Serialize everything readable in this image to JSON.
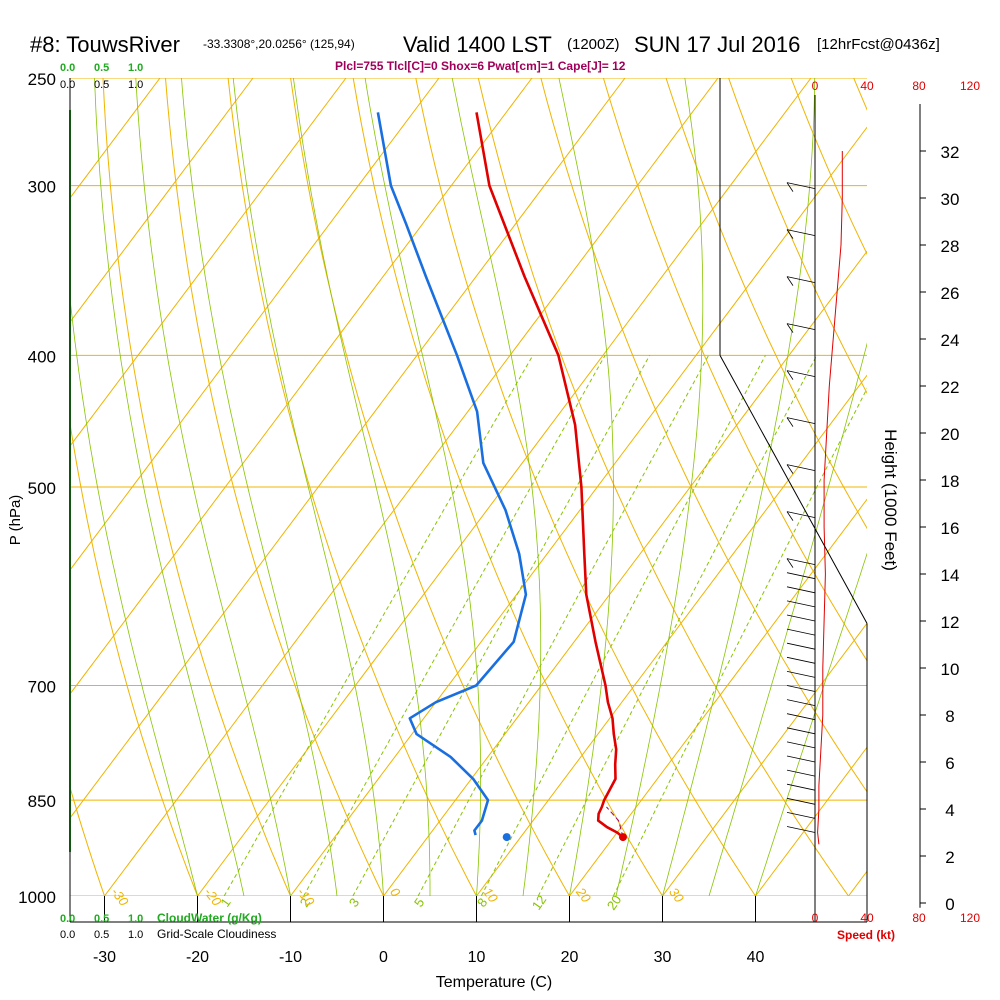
{
  "header": {
    "station": "#8: TouwsRiver",
    "coords": "-33.3308°,20.0256° (125,94)",
    "valid": "Valid 1400 LST",
    "zulu": "(1200Z)",
    "date": "SUN 17 Jul 2016",
    "fcst": "[12hrFcst@0436z]",
    "params": "Plcl=755 Tlcl[C]=0 Shox=6 Pwat[cm]=1 Cape[J]= 12"
  },
  "scales": {
    "cloud_top": [
      "0.0",
      "0.5",
      "1.0"
    ],
    "cloudiness_top": [
      "0.0",
      "0.5",
      "1.0"
    ],
    "cloud_bottom": [
      "0.0",
      "0.5",
      "1.0"
    ],
    "cloud_bottom_label": "CloudWater (g/Kg)",
    "cloudiness_bottom": [
      "0.0",
      "0.5",
      "1.0"
    ],
    "cloudiness_bottom_label": "Grid-Scale Cloudiness",
    "speed_ticks": [
      "0",
      "40",
      "80",
      "120"
    ],
    "speed_label": "Speed (kt)"
  },
  "colors": {
    "isobar": "#f0b400",
    "isotherm": "#f0b400",
    "dry_adiabat": "#f0b400",
    "moist_adiabat": "#88c400",
    "mixing_ratio": "#88c400",
    "temperature": "#e00000",
    "dewpoint": "#1a6fe0",
    "cloud": "#22aa22",
    "param_text": "#a0005a",
    "speed": "#e00000"
  },
  "chart_data": {
    "type": "skew-t",
    "xlabel": "Temperature (C)",
    "ylabel": "P (hPa)",
    "right_label": "Height (1000 Feet)",
    "x_ticks": [
      -30,
      -20,
      -10,
      0,
      10,
      20,
      30,
      40
    ],
    "p_ticks": [
      250,
      300,
      400,
      500,
      700,
      850,
      1000
    ],
    "height_ticks": [
      0,
      2,
      4,
      6,
      8,
      10,
      12,
      14,
      16,
      18,
      20,
      22,
      24,
      26,
      28,
      30,
      32
    ],
    "isotherm_labels": [
      -30,
      -20,
      -10,
      0,
      10,
      20,
      30
    ],
    "mixing_ratio_labels": [
      1,
      2,
      3,
      5,
      8,
      12,
      20
    ],
    "temperature": {
      "pressure": [
        905,
        898,
        890,
        880,
        870,
        860,
        850,
        820,
        800,
        780,
        760,
        740,
        720,
        700,
        650,
        600,
        560,
        500,
        450,
        400,
        350,
        300,
        265
      ],
      "value": [
        21.0,
        20.0,
        18.5,
        17.0,
        16.5,
        16.3,
        16.0,
        15.5,
        14.3,
        13.2,
        11.7,
        10.3,
        8.5,
        6.9,
        2.3,
        -2.5,
        -6.0,
        -11.7,
        -17.4,
        -24.8,
        -34.8,
        -45.9,
        -53.2
      ]
    },
    "dewpoint": {
      "pressure": [
        902,
        895,
        880,
        850,
        820,
        790,
        760,
        740,
        720,
        700,
        650,
        600,
        560,
        520,
        480,
        440,
        400,
        350,
        320,
        300,
        265
      ],
      "value": [
        5.0,
        4.5,
        4.5,
        3.5,
        0.2,
        -4.0,
        -9.5,
        -11.5,
        -10.0,
        -7.0,
        -6.5,
        -9.0,
        -13.0,
        -18.0,
        -24.2,
        -29.0,
        -35.7,
        -45.4,
        -51.8,
        -56.5,
        -63.8
      ]
    },
    "surface": {
      "temperature": 21.0,
      "dewpoint": 8.5,
      "pressure": 905
    },
    "wind_speed_profile_kt": {
      "height_kft": [
        2.5,
        3,
        4,
        5,
        6,
        8,
        10,
        12,
        14,
        16,
        18,
        20,
        22,
        24,
        26,
        28,
        30,
        32
      ],
      "speed": [
        3,
        2,
        3,
        3,
        4,
        6,
        6,
        7,
        8,
        7,
        7,
        9,
        11,
        14,
        17,
        20,
        21,
        21
      ]
    }
  }
}
